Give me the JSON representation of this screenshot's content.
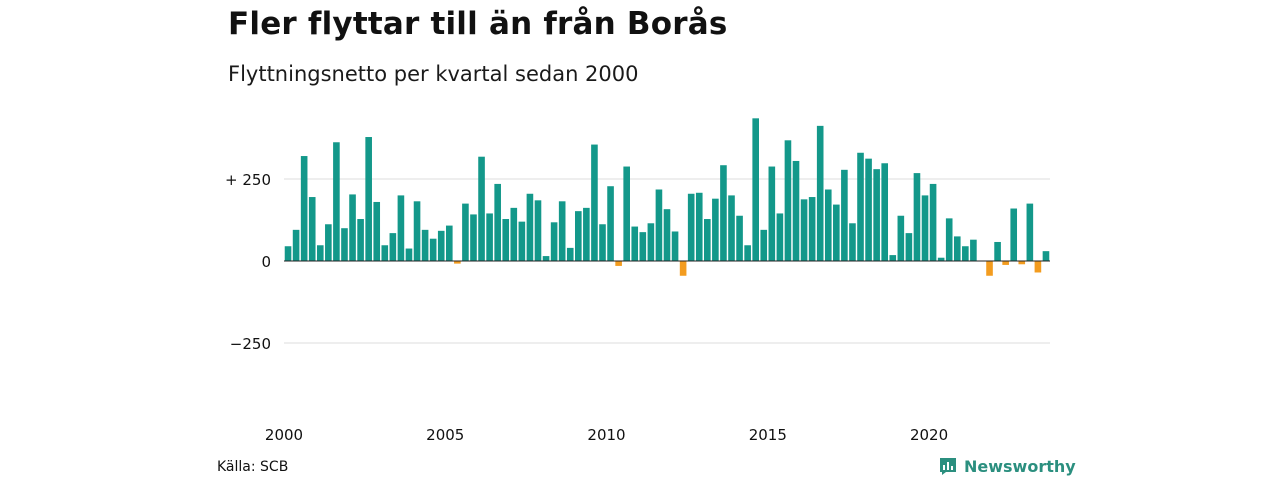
{
  "title": "Fler flyttar till än från Borås",
  "subtitle": "Flyttningsnetto per kvartal sedan 2000",
  "source": "Källa: SCB",
  "brand": "Newsworthy",
  "colors": {
    "positive": "#13988a",
    "negative": "#f39c1f",
    "grid": "#dddddd",
    "brand": "#2b8f7f"
  },
  "chart_data": {
    "type": "bar",
    "ylim": [
      -400,
      450
    ],
    "yticks": [
      {
        "value": 250,
        "label": "+ 250"
      },
      {
        "value": 0,
        "label": "0"
      },
      {
        "value": -250,
        "label": "−250"
      }
    ],
    "xticks": [
      "2000",
      "2005",
      "2010",
      "2015",
      "2020"
    ],
    "grid": true,
    "series": [
      {
        "values": [
          45,
          95,
          320,
          195,
          48,
          112,
          362,
          100,
          203,
          128,
          378,
          180,
          48,
          85,
          200,
          38,
          182,
          95,
          68,
          92,
          108,
          -8,
          175,
          142,
          318,
          145,
          235,
          128,
          162,
          120,
          205,
          185,
          15,
          118,
          182,
          40,
          152,
          162,
          355,
          112,
          228,
          -15,
          288,
          105,
          88,
          115,
          218,
          158,
          90,
          -45,
          205,
          208,
          128,
          190,
          292,
          200,
          138,
          48,
          435,
          95,
          288,
          145,
          368,
          305,
          188,
          195,
          412,
          218,
          172,
          278,
          115,
          330,
          312,
          280,
          298,
          18,
          138,
          85,
          268,
          200,
          235,
          10,
          130,
          75,
          45,
          65,
          0,
          -45,
          58,
          -12,
          160,
          -10,
          175,
          -35,
          30
        ]
      }
    ]
  }
}
